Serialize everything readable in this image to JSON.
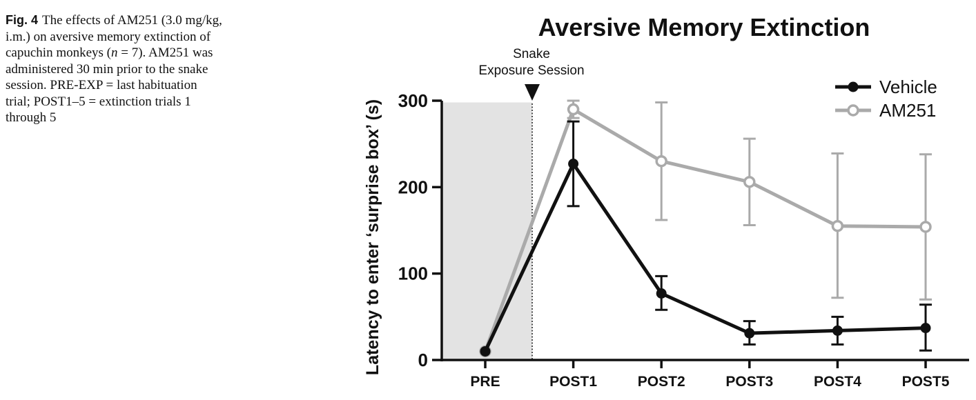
{
  "caption": {
    "label": "Fig. 4",
    "text_before_n": "The effects of AM251 (3.0 mg/kg, i.m.) on aversive memory extinction of capuchin monkeys (",
    "n_symbol": "n",
    "text_after_n": " = 7). AM251 was administered 30 min prior to the snake session. PRE-EXP = last habituation trial; POST1–5 = extinction trials 1 through 5"
  },
  "chart_data": {
    "type": "line",
    "title": "Aversive Memory Extinction",
    "xlabel": "",
    "ylabel": "Latency to enter ‘surprise box’ (s)",
    "categories": [
      "PRE",
      "POST1",
      "POST2",
      "POST3",
      "POST4",
      "POST5"
    ],
    "ylim": [
      0,
      300
    ],
    "yticks": [
      0,
      100,
      200,
      300
    ],
    "legend_position": "top-right",
    "annotation": {
      "line1": "Snake",
      "line2": "Exposure Session",
      "between": [
        "PRE",
        "POST1"
      ]
    },
    "shaded_region": {
      "from": "PRE",
      "to": "Snake Exposure Session",
      "color": "#e3e3e3"
    },
    "series": [
      {
        "name": "AM251",
        "color": "#aaaaaa",
        "marker": "open-circle",
        "values": [
          10,
          290,
          230,
          206,
          155,
          154
        ],
        "err_upper": [
          0,
          300,
          298,
          256,
          239,
          238
        ],
        "err_lower": [
          0,
          280,
          162,
          156,
          72,
          70
        ]
      },
      {
        "name": "Vehicle",
        "color": "#111111",
        "marker": "filled-circle",
        "values": [
          10,
          227,
          77,
          31,
          34,
          37
        ],
        "err_upper": [
          0,
          276,
          97,
          45,
          50,
          64
        ],
        "err_lower": [
          0,
          178,
          58,
          18,
          18,
          11
        ]
      }
    ],
    "legend_order": [
      "Vehicle",
      "AM251"
    ]
  }
}
